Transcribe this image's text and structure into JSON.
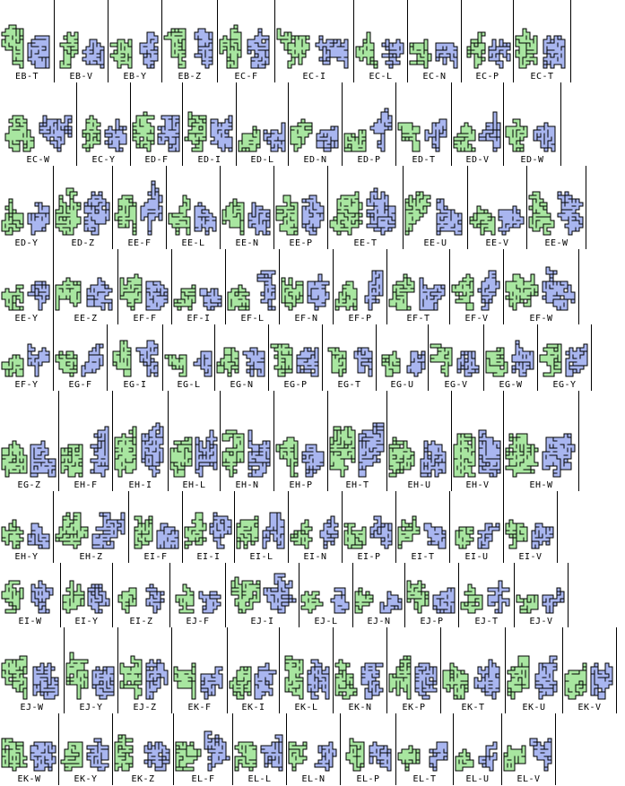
{
  "colors": {
    "green": "#a8e6a0",
    "blue": "#a9b6f0",
    "stroke": "#000000"
  },
  "rows": [
    [
      "EB-T",
      "EB-V",
      "EB-Y",
      "EB-Z",
      "EC-F",
      "EC-I",
      "EC-L",
      "EC-N",
      "EC-P",
      "EC-T"
    ],
    [
      "EC-W",
      "EC-Y",
      "ED-F",
      "ED-I",
      "ED-L",
      "ED-N",
      "ED-P",
      "ED-T",
      "ED-V",
      "ED-W"
    ],
    [
      "ED-Y",
      "ED-Z",
      "EE-F",
      "EE-L",
      "EE-N",
      "EE-P",
      "EE-T",
      "EE-U",
      "EE-V",
      "EE-W"
    ],
    [
      "EE-Y",
      "EE-Z",
      "EF-F",
      "EF-I",
      "EF-L",
      "EF-N",
      "EF-P",
      "EF-T",
      "EF-V",
      "EF-W"
    ],
    [
      "EF-Y",
      "EG-F",
      "EG-I",
      "EG-L",
      "EG-N",
      "EG-P",
      "EG-T",
      "EG-U",
      "EG-V",
      "EG-W",
      "EG-Y"
    ],
    [
      "EG-Z",
      "EH-F",
      "EH-I",
      "EH-L",
      "EH-N",
      "EH-P",
      "EH-T",
      "EH-U",
      "EH-V",
      "EH-W"
    ],
    [
      "EH-Y",
      "EH-Z",
      "EI-F",
      "EI-I",
      "EI-L",
      "EI-N",
      "EI-P",
      "EI-T",
      "EI-U",
      "EI-V"
    ],
    [
      "EI-W",
      "EI-Y",
      "EI-Z",
      "EJ-F",
      "EJ-I",
      "EJ-L",
      "EJ-N",
      "EJ-P",
      "EJ-T",
      "EJ-V"
    ],
    [
      "EJ-W",
      "EJ-Y",
      "EJ-Z",
      "EK-F",
      "EK-I",
      "EK-L",
      "EK-N",
      "EK-P",
      "EK-T",
      "EK-U",
      "EK-V"
    ],
    [
      "EK-W",
      "EK-Y",
      "EK-Z",
      "EL-F",
      "EL-L",
      "EL-N",
      "EL-P",
      "EL-T",
      "EL-U",
      "EL-V"
    ]
  ]
}
